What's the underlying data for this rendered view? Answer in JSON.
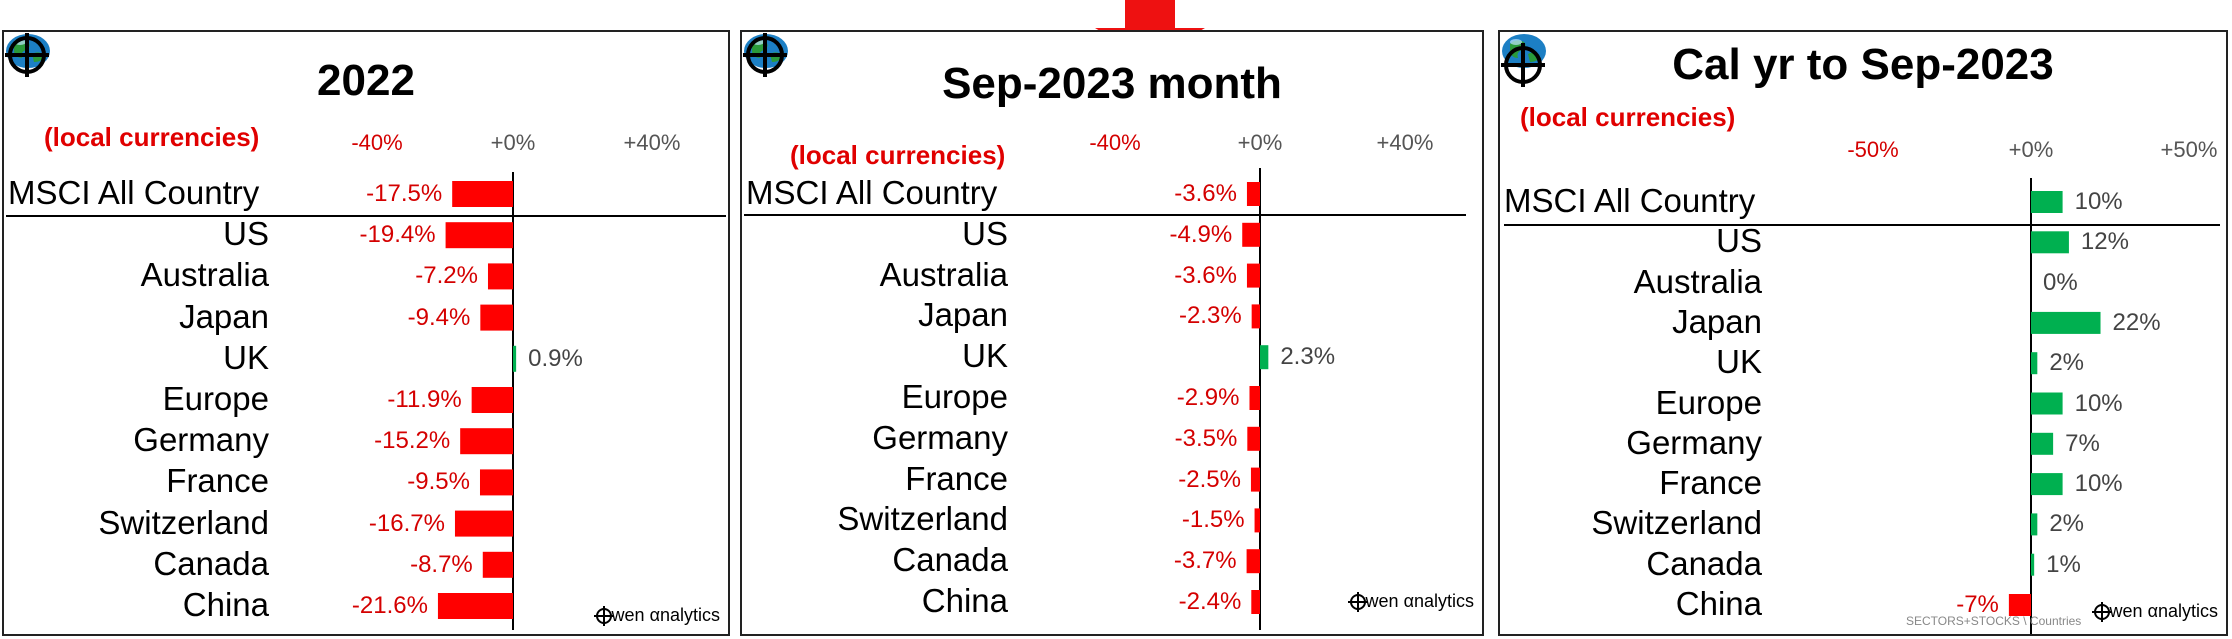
{
  "panels": [
    {
      "title": "2022",
      "currency_note": "(local currencies)",
      "ticks": [
        "-40%",
        "+0%",
        "+40%"
      ],
      "brand": "wen αnalytics"
    },
    {
      "title": "Sep-2023 month",
      "currency_note": "(local currencies)",
      "ticks": [
        "-40%",
        "+0%",
        "+40%"
      ],
      "brand": "wen αnalytics"
    },
    {
      "title": "Cal yr to Sep-2023",
      "currency_note": "(local currencies)",
      "ticks": [
        "-50%",
        "+0%",
        "+50%"
      ],
      "brand": "wen αnalytics",
      "footnote": "SECTORS+STOCKS \\ Countries"
    }
  ],
  "colors": {
    "negative": "#ff0000",
    "positive": "#00b050",
    "label_negative": "#d40000"
  },
  "icons": [
    "globe-icon",
    "crosshair-icon",
    "down-arrow-icon"
  ],
  "chart_data": [
    {
      "type": "bar",
      "orientation": "horizontal",
      "title": "2022",
      "categories": [
        "MSCI All Country",
        "US",
        "Australia",
        "Japan",
        "UK",
        "Europe",
        "Germany",
        "France",
        "Switzerland",
        "Canada",
        "China"
      ],
      "values": [
        -17.5,
        -19.4,
        -7.2,
        -9.4,
        0.9,
        -11.9,
        -15.2,
        -9.5,
        -16.7,
        -8.7,
        -21.6
      ],
      "labels": [
        "-17.5%",
        "-19.4%",
        "-7.2%",
        "-9.4%",
        "0.9%",
        "-11.9%",
        "-15.2%",
        "-9.5%",
        "-16.7%",
        "-8.7%",
        "-21.6%"
      ],
      "xlim": [
        -40,
        40
      ]
    },
    {
      "type": "bar",
      "orientation": "horizontal",
      "title": "Sep-2023 month",
      "categories": [
        "MSCI All Country",
        "US",
        "Australia",
        "Japan",
        "UK",
        "Europe",
        "Germany",
        "France",
        "Switzerland",
        "Canada",
        "China"
      ],
      "values": [
        -3.6,
        -4.9,
        -3.6,
        -2.3,
        2.3,
        -2.9,
        -3.5,
        -2.5,
        -1.5,
        -3.7,
        -2.4
      ],
      "labels": [
        "-3.6%",
        "-4.9%",
        "-3.6%",
        "-2.3%",
        "2.3%",
        "-2.9%",
        "-3.5%",
        "-2.5%",
        "-1.5%",
        "-3.7%",
        "-2.4%"
      ],
      "xlim": [
        -40,
        40
      ]
    },
    {
      "type": "bar",
      "orientation": "horizontal",
      "title": "Cal yr to Sep-2023",
      "categories": [
        "MSCI All Country",
        "US",
        "Australia",
        "Japan",
        "UK",
        "Europe",
        "Germany",
        "France",
        "Switzerland",
        "Canada",
        "China"
      ],
      "values": [
        10,
        12,
        0,
        22,
        2,
        10,
        7,
        10,
        2,
        1,
        -7
      ],
      "labels": [
        "10%",
        "12%",
        "0%",
        "22%",
        "2%",
        "10%",
        "7%",
        "10%",
        "2%",
        "1%",
        "-7%"
      ],
      "xlim": [
        -50,
        50
      ]
    }
  ]
}
